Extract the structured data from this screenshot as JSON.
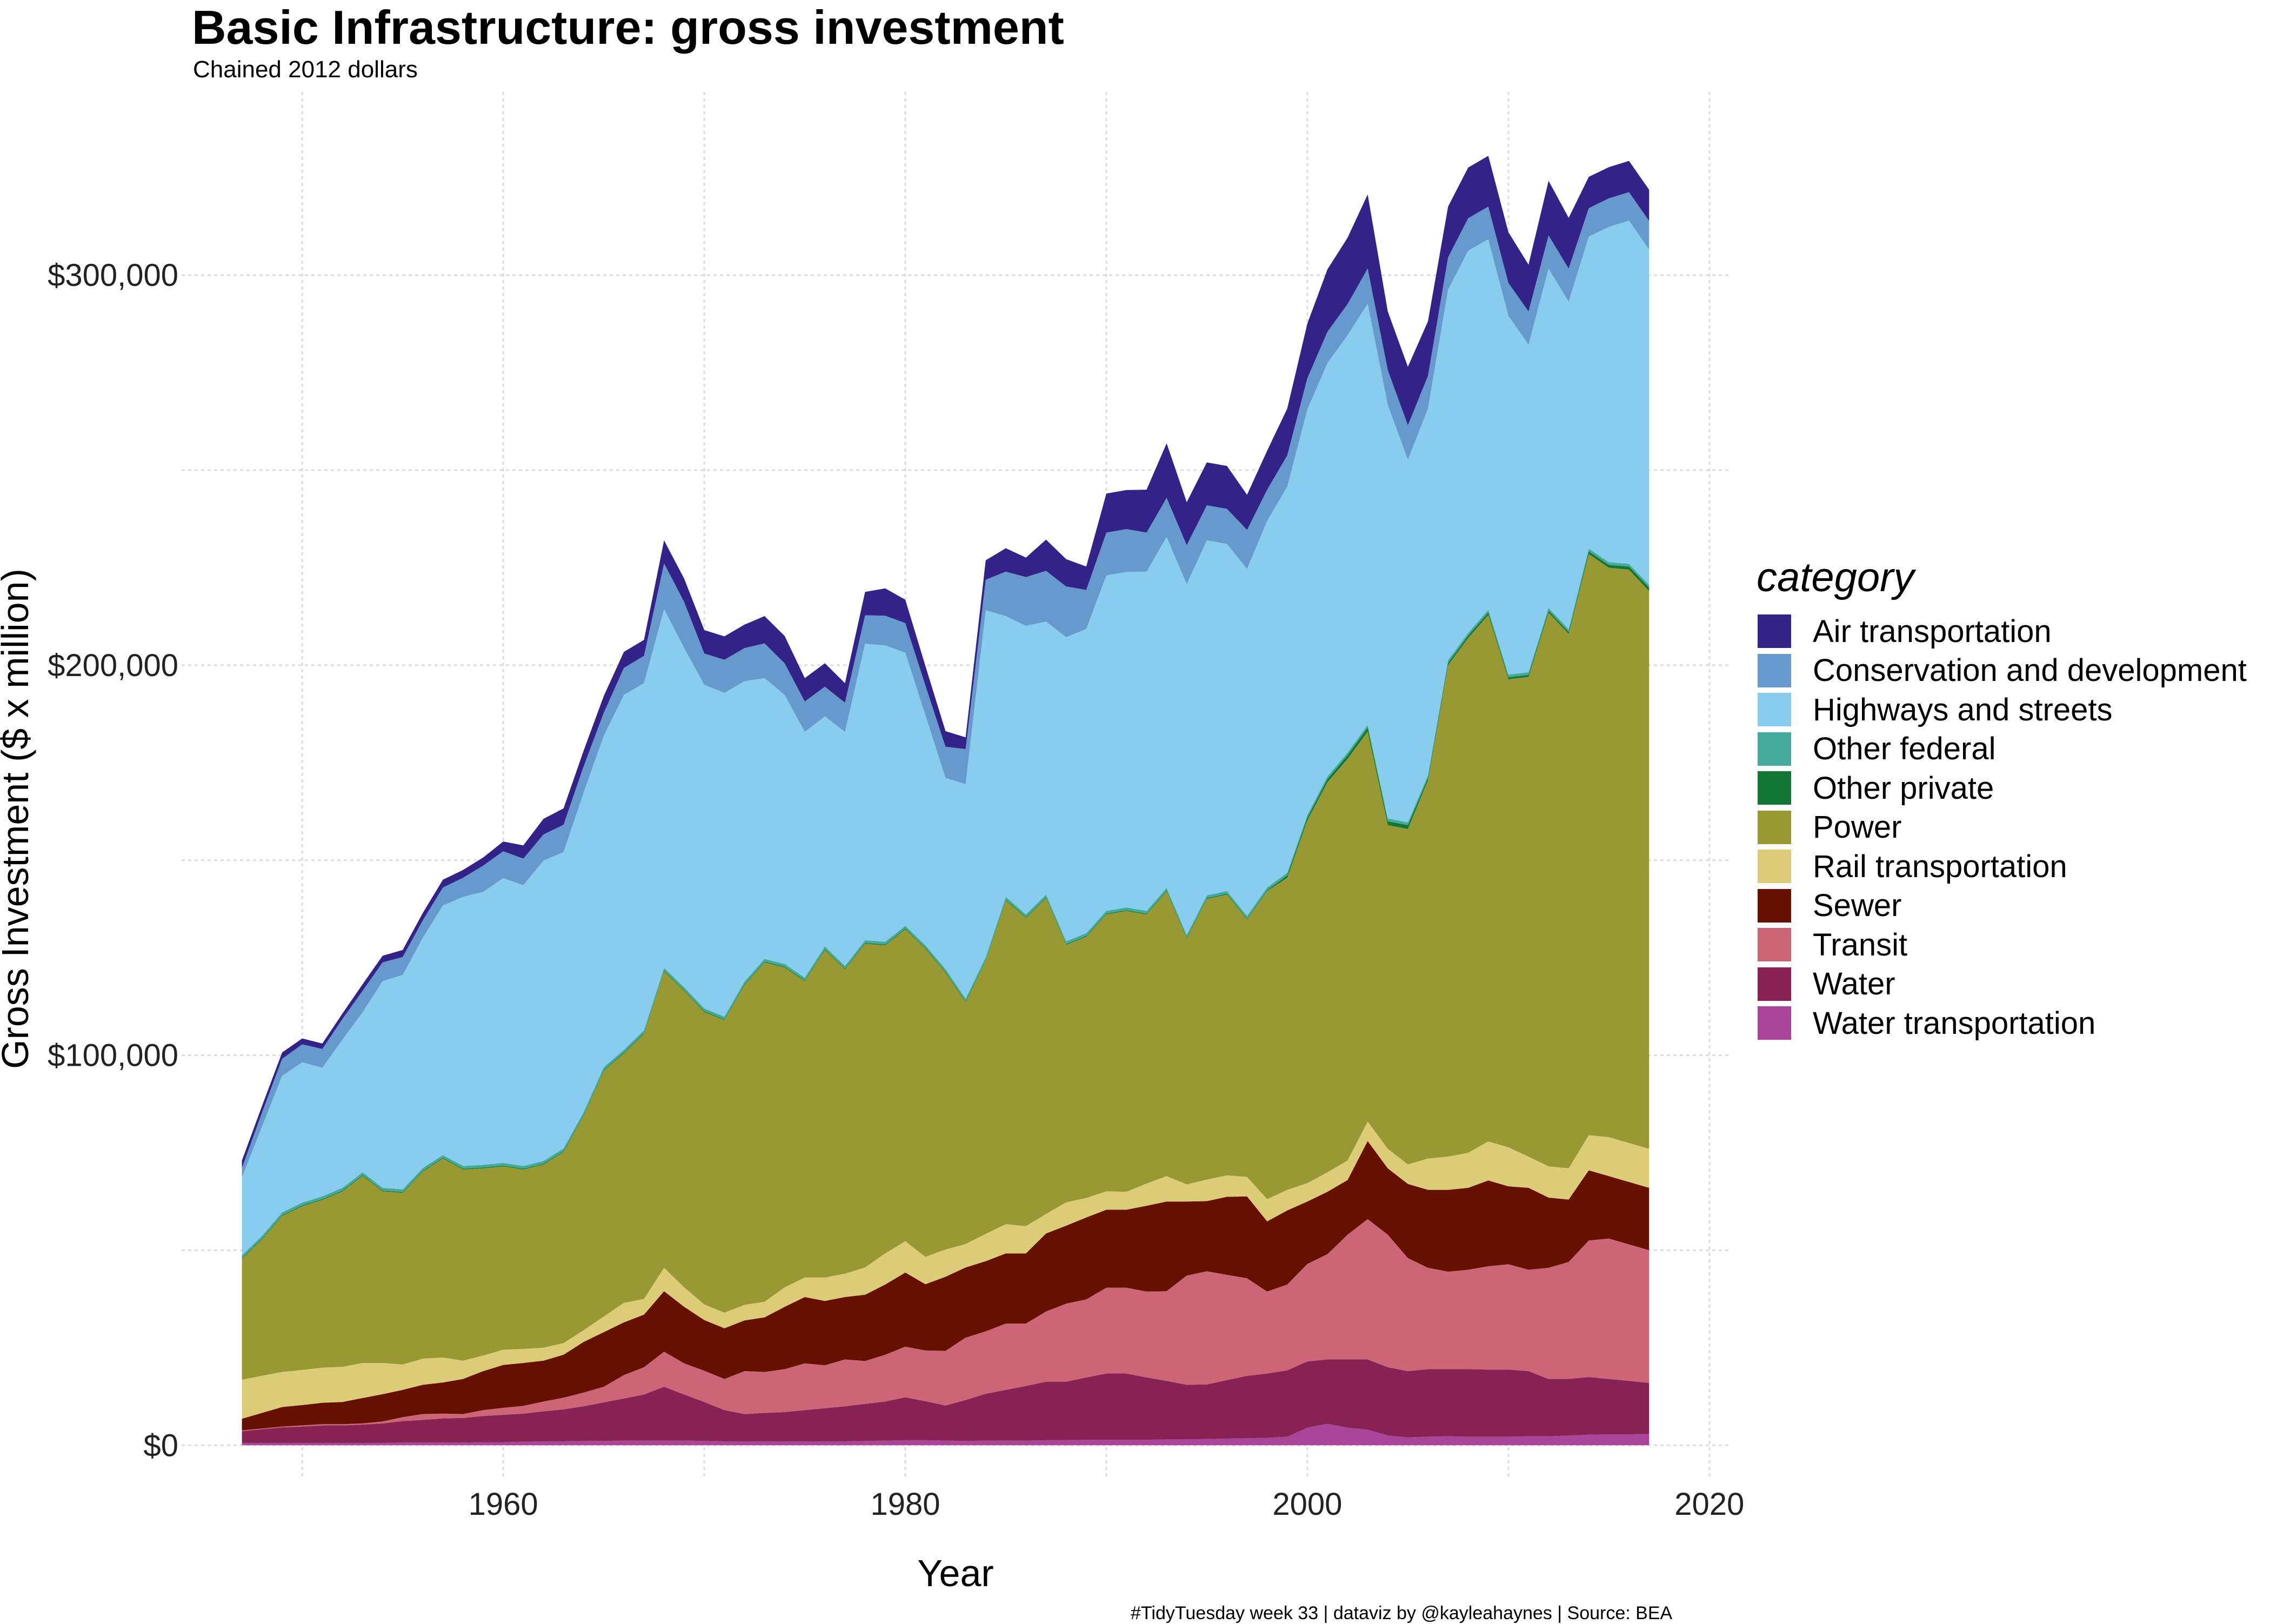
{
  "chart_data": {
    "type": "area",
    "stacked": true,
    "title": "Basic Infrastructure: gross investment",
    "subtitle": "Chained 2012 dollars",
    "xlabel": "Year",
    "ylabel": "Gross Investment ($ x million)",
    "caption": "#TidyTuesday week 33 | dataviz by @kayleahaynes | Source: BEA",
    "xlim": [
      1944,
      2021
    ],
    "ylim": [
      -8000,
      347000
    ],
    "x_ticks": [
      1960,
      1980,
      2000,
      2020
    ],
    "y_ticks": [
      {
        "value": 0,
        "label": "$0"
      },
      {
        "value": 100000,
        "label": "$100,000"
      },
      {
        "value": 200000,
        "label": "$200,000"
      },
      {
        "value": 300000,
        "label": "$300,000"
      }
    ],
    "grid": true,
    "legend_title": "category",
    "legend_position": "right",
    "x": [
      1947,
      1948,
      1949,
      1950,
      1951,
      1952,
      1953,
      1954,
      1955,
      1956,
      1957,
      1958,
      1959,
      1960,
      1961,
      1962,
      1963,
      1964,
      1965,
      1966,
      1967,
      1968,
      1969,
      1970,
      1971,
      1972,
      1973,
      1974,
      1975,
      1976,
      1977,
      1978,
      1979,
      1980,
      1981,
      1982,
      1983,
      1984,
      1985,
      1986,
      1987,
      1988,
      1989,
      1990,
      1991,
      1992,
      1993,
      1994,
      1995,
      1996,
      1997,
      1998,
      1999,
      2000,
      2001,
      2002,
      2003,
      2004,
      2005,
      2006,
      2007,
      2008,
      2009,
      2010,
      2011,
      2012,
      2013,
      2014,
      2015,
      2016,
      2017
    ],
    "series": [
      {
        "name": "Water transportation",
        "color": "#AA4499",
        "values": [
          600,
          600,
          600,
          600,
          600,
          600,
          600,
          600,
          700,
          700,
          700,
          700,
          800,
          800,
          900,
          1000,
          1000,
          1100,
          1100,
          1200,
          1200,
          1200,
          1200,
          1100,
          1000,
          1000,
          1000,
          1000,
          1000,
          1000,
          1000,
          1100,
          1200,
          1300,
          1300,
          1200,
          1100,
          1200,
          1200,
          1200,
          1300,
          1300,
          1400,
          1400,
          1400,
          1400,
          1500,
          1500,
          1600,
          1700,
          1800,
          1900,
          2200,
          4500,
          5500,
          4500,
          4000,
          2500,
          2000,
          2200,
          2300,
          2200,
          2200,
          2200,
          2300,
          2300,
          2500,
          2700,
          2800,
          2800,
          2900
        ]
      },
      {
        "name": "Water",
        "color": "#882255",
        "values": [
          3000,
          3500,
          4000,
          4200,
          4500,
          4500,
          4700,
          5000,
          5500,
          5800,
          6200,
          6300,
          6700,
          7000,
          7200,
          7700,
          8200,
          8900,
          9900,
          10800,
          11800,
          13800,
          11800,
          10000,
          8000,
          7000,
          7300,
          7500,
          8000,
          8500,
          9000,
          9500,
          10000,
          11000,
          10000,
          9000,
          10500,
          12000,
          13000,
          14000,
          15000,
          15000,
          16000,
          17000,
          17000,
          16000,
          15000,
          14000,
          14000,
          15000,
          16000,
          16500,
          17000,
          17000,
          16500,
          17500,
          18000,
          17500,
          17000,
          17300,
          17200,
          17300,
          17200,
          17200,
          16700,
          14700,
          14500,
          14800,
          14200,
          13700,
          13100
        ]
      },
      {
        "name": "Transit",
        "color": "#CC6677",
        "values": [
          200,
          200,
          200,
          300,
          300,
          300,
          300,
          500,
          1000,
          1500,
          1200,
          1000,
          1500,
          1800,
          2000,
          2500,
          3000,
          3500,
          4000,
          6000,
          7000,
          9000,
          8000,
          8000,
          8000,
          11000,
          10500,
          11000,
          12000,
          11000,
          12000,
          11000,
          12000,
          13000,
          13000,
          14000,
          16000,
          16000,
          17000,
          16000,
          18000,
          20000,
          20000,
          22000,
          22000,
          22000,
          23000,
          28000,
          29000,
          27000,
          25000,
          21000,
          22000,
          25000,
          27000,
          32000,
          36000,
          34000,
          29000,
          26000,
          25000,
          25500,
          26500,
          27000,
          26000,
          28500,
          30000,
          35000,
          36000,
          35000,
          34000
        ]
      },
      {
        "name": "Sewer",
        "color": "#661100",
        "values": [
          3000,
          4000,
          5000,
          5200,
          5500,
          5700,
          6500,
          7000,
          7000,
          7500,
          8000,
          9000,
          10000,
          11000,
          11000,
          10500,
          11000,
          13000,
          14000,
          13500,
          13500,
          15500,
          14500,
          13000,
          13000,
          13000,
          14000,
          16000,
          17000,
          16500,
          16000,
          17000,
          18000,
          19000,
          17000,
          19000,
          18000,
          18000,
          18000,
          18000,
          20000,
          20000,
          21000,
          20000,
          20000,
          22000,
          23000,
          19000,
          18000,
          20000,
          21000,
          18000,
          19000,
          16000,
          16000,
          14000,
          20000,
          17000,
          19000,
          20000,
          21000,
          21000,
          22000,
          20000,
          21000,
          18000,
          16000,
          18000,
          16000,
          16000,
          16000
        ]
      },
      {
        "name": "Rail transportation",
        "color": "#DDCC77",
        "values": [
          10000,
          9500,
          9000,
          9000,
          9000,
          9000,
          9000,
          8000,
          6500,
          6700,
          6400,
          4700,
          4000,
          3900,
          3600,
          3300,
          3000,
          3000,
          4000,
          5000,
          4000,
          6000,
          5000,
          4000,
          4000,
          4000,
          4000,
          5000,
          5000,
          6000,
          6000,
          7000,
          8000,
          8000,
          7000,
          7000,
          6000,
          7000,
          7500,
          7000,
          5000,
          6000,
          5000,
          4700,
          4600,
          5700,
          6500,
          4400,
          5500,
          5500,
          5000,
          5700,
          5300,
          4700,
          5000,
          5000,
          5000,
          5000,
          5000,
          8000,
          8500,
          9000,
          10000,
          10000,
          8000,
          8000,
          8000,
          9000,
          10000,
          10000,
          10000
        ]
      },
      {
        "name": "Power",
        "color": "#999933",
        "values": [
          31000,
          35000,
          40000,
          42000,
          43000,
          45000,
          48000,
          44000,
          44000,
          48000,
          51000,
          49000,
          48000,
          47000,
          46000,
          47000,
          49000,
          55000,
          63000,
          64000,
          68000,
          76000,
          76000,
          75000,
          75000,
          82000,
          87000,
          82000,
          76000,
          84000,
          78000,
          83000,
          79000,
          80000,
          79000,
          71000,
          62000,
          70000,
          83000,
          79000,
          81000,
          66000,
          67000,
          71000,
          72000,
          69000,
          73000,
          63000,
          72000,
          72000,
          66000,
          79000,
          80000,
          93000,
          100000,
          103000,
          100000,
          83000,
          86000,
          97000,
          126000,
          132000,
          135000,
          120000,
          123000,
          142000,
          137000,
          149000,
          146000,
          147000,
          143000
        ]
      },
      {
        "name": "Other private",
        "color": "#117733",
        "values": [
          200,
          200,
          200,
          200,
          200,
          200,
          200,
          200,
          200,
          200,
          200,
          200,
          200,
          200,
          200,
          200,
          200,
          200,
          200,
          200,
          200,
          200,
          200,
          200,
          200,
          200,
          200,
          200,
          200,
          200,
          200,
          200,
          200,
          200,
          200,
          200,
          200,
          200,
          200,
          200,
          200,
          200,
          200,
          200,
          200,
          200,
          200,
          200,
          200,
          200,
          200,
          200,
          600,
          700,
          800,
          900,
          1000,
          1000,
          1000,
          600,
          600,
          600,
          600,
          500,
          500,
          500,
          500,
          700,
          700,
          800,
          900
        ]
      },
      {
        "name": "Other federal",
        "color": "#44AA99",
        "values": [
          700,
          700,
          700,
          700,
          700,
          700,
          700,
          700,
          700,
          700,
          700,
          700,
          700,
          700,
          700,
          700,
          700,
          700,
          700,
          700,
          700,
          700,
          700,
          700,
          700,
          700,
          700,
          700,
          700,
          700,
          700,
          700,
          700,
          700,
          700,
          700,
          700,
          700,
          700,
          700,
          700,
          700,
          700,
          700,
          700,
          700,
          700,
          700,
          700,
          700,
          700,
          700,
          700,
          700,
          700,
          700,
          700,
          700,
          700,
          700,
          700,
          700,
          700,
          700,
          700,
          700,
          700,
          700,
          700,
          700,
          700
        ]
      },
      {
        "name": "Highways and streets",
        "color": "#88CCEE",
        "values": [
          20000,
          28000,
          35000,
          36000,
          33000,
          38000,
          41000,
          53000,
          55000,
          59000,
          64000,
          69000,
          70000,
          73000,
          72000,
          77000,
          76000,
          82000,
          85000,
          91000,
          89000,
          92000,
          87000,
          83000,
          83000,
          77000,
          72000,
          69000,
          63000,
          59000,
          60000,
          76000,
          76000,
          70000,
          59000,
          49000,
          55000,
          89000,
          72000,
          74000,
          70000,
          78000,
          78000,
          86000,
          86000,
          87000,
          90000,
          90000,
          91000,
          89000,
          89000,
          94000,
          99000,
          104000,
          106000,
          107000,
          108000,
          106000,
          93000,
          94000,
          95000,
          98000,
          95000,
          92000,
          84000,
          87000,
          84000,
          80000,
          86000,
          88000,
          86000
        ]
      },
      {
        "name": "Conservation and development",
        "color": "#6699CC",
        "values": [
          2400,
          3600,
          4400,
          4600,
          4800,
          5300,
          5500,
          4800,
          4600,
          4500,
          4600,
          4900,
          6700,
          6900,
          6800,
          6700,
          7000,
          6700,
          5900,
          6900,
          7000,
          11700,
          11800,
          8000,
          8500,
          8500,
          8900,
          8100,
          7800,
          7600,
          7500,
          7300,
          7600,
          7600,
          7600,
          8000,
          9000,
          7800,
          11400,
          12500,
          13000,
          13000,
          10000,
          11000,
          11000,
          10000,
          10000,
          10000,
          9000,
          9000,
          10000,
          8000,
          8000,
          8000,
          8000,
          8000,
          9000,
          9000,
          8800,
          8400,
          8300,
          8300,
          8400,
          8400,
          8500,
          8500,
          8500,
          7300,
          7300,
          7300,
          7300
        ]
      },
      {
        "name": "Air transportation",
        "color": "#332288",
        "values": [
          1900,
          1700,
          1600,
          1500,
          1400,
          1400,
          1700,
          1700,
          1800,
          1900,
          2000,
          2000,
          2100,
          2500,
          3400,
          4000,
          4200,
          4000,
          4300,
          4100,
          4100,
          5900,
          6000,
          6000,
          6000,
          6000,
          7000,
          7000,
          6000,
          6000,
          5000,
          6000,
          7000,
          6000,
          5000,
          4000,
          3000,
          5000,
          6000,
          5000,
          8000,
          7000,
          6000,
          10000,
          10000,
          11000,
          14000,
          11000,
          11000,
          11000,
          9000,
          10000,
          12000,
          14000,
          16000,
          17000,
          19000,
          15000,
          15000,
          14000,
          13000,
          13000,
          13000,
          13000,
          12000,
          14000,
          13000,
          8000,
          8000,
          8000,
          8000
        ]
      }
    ]
  }
}
